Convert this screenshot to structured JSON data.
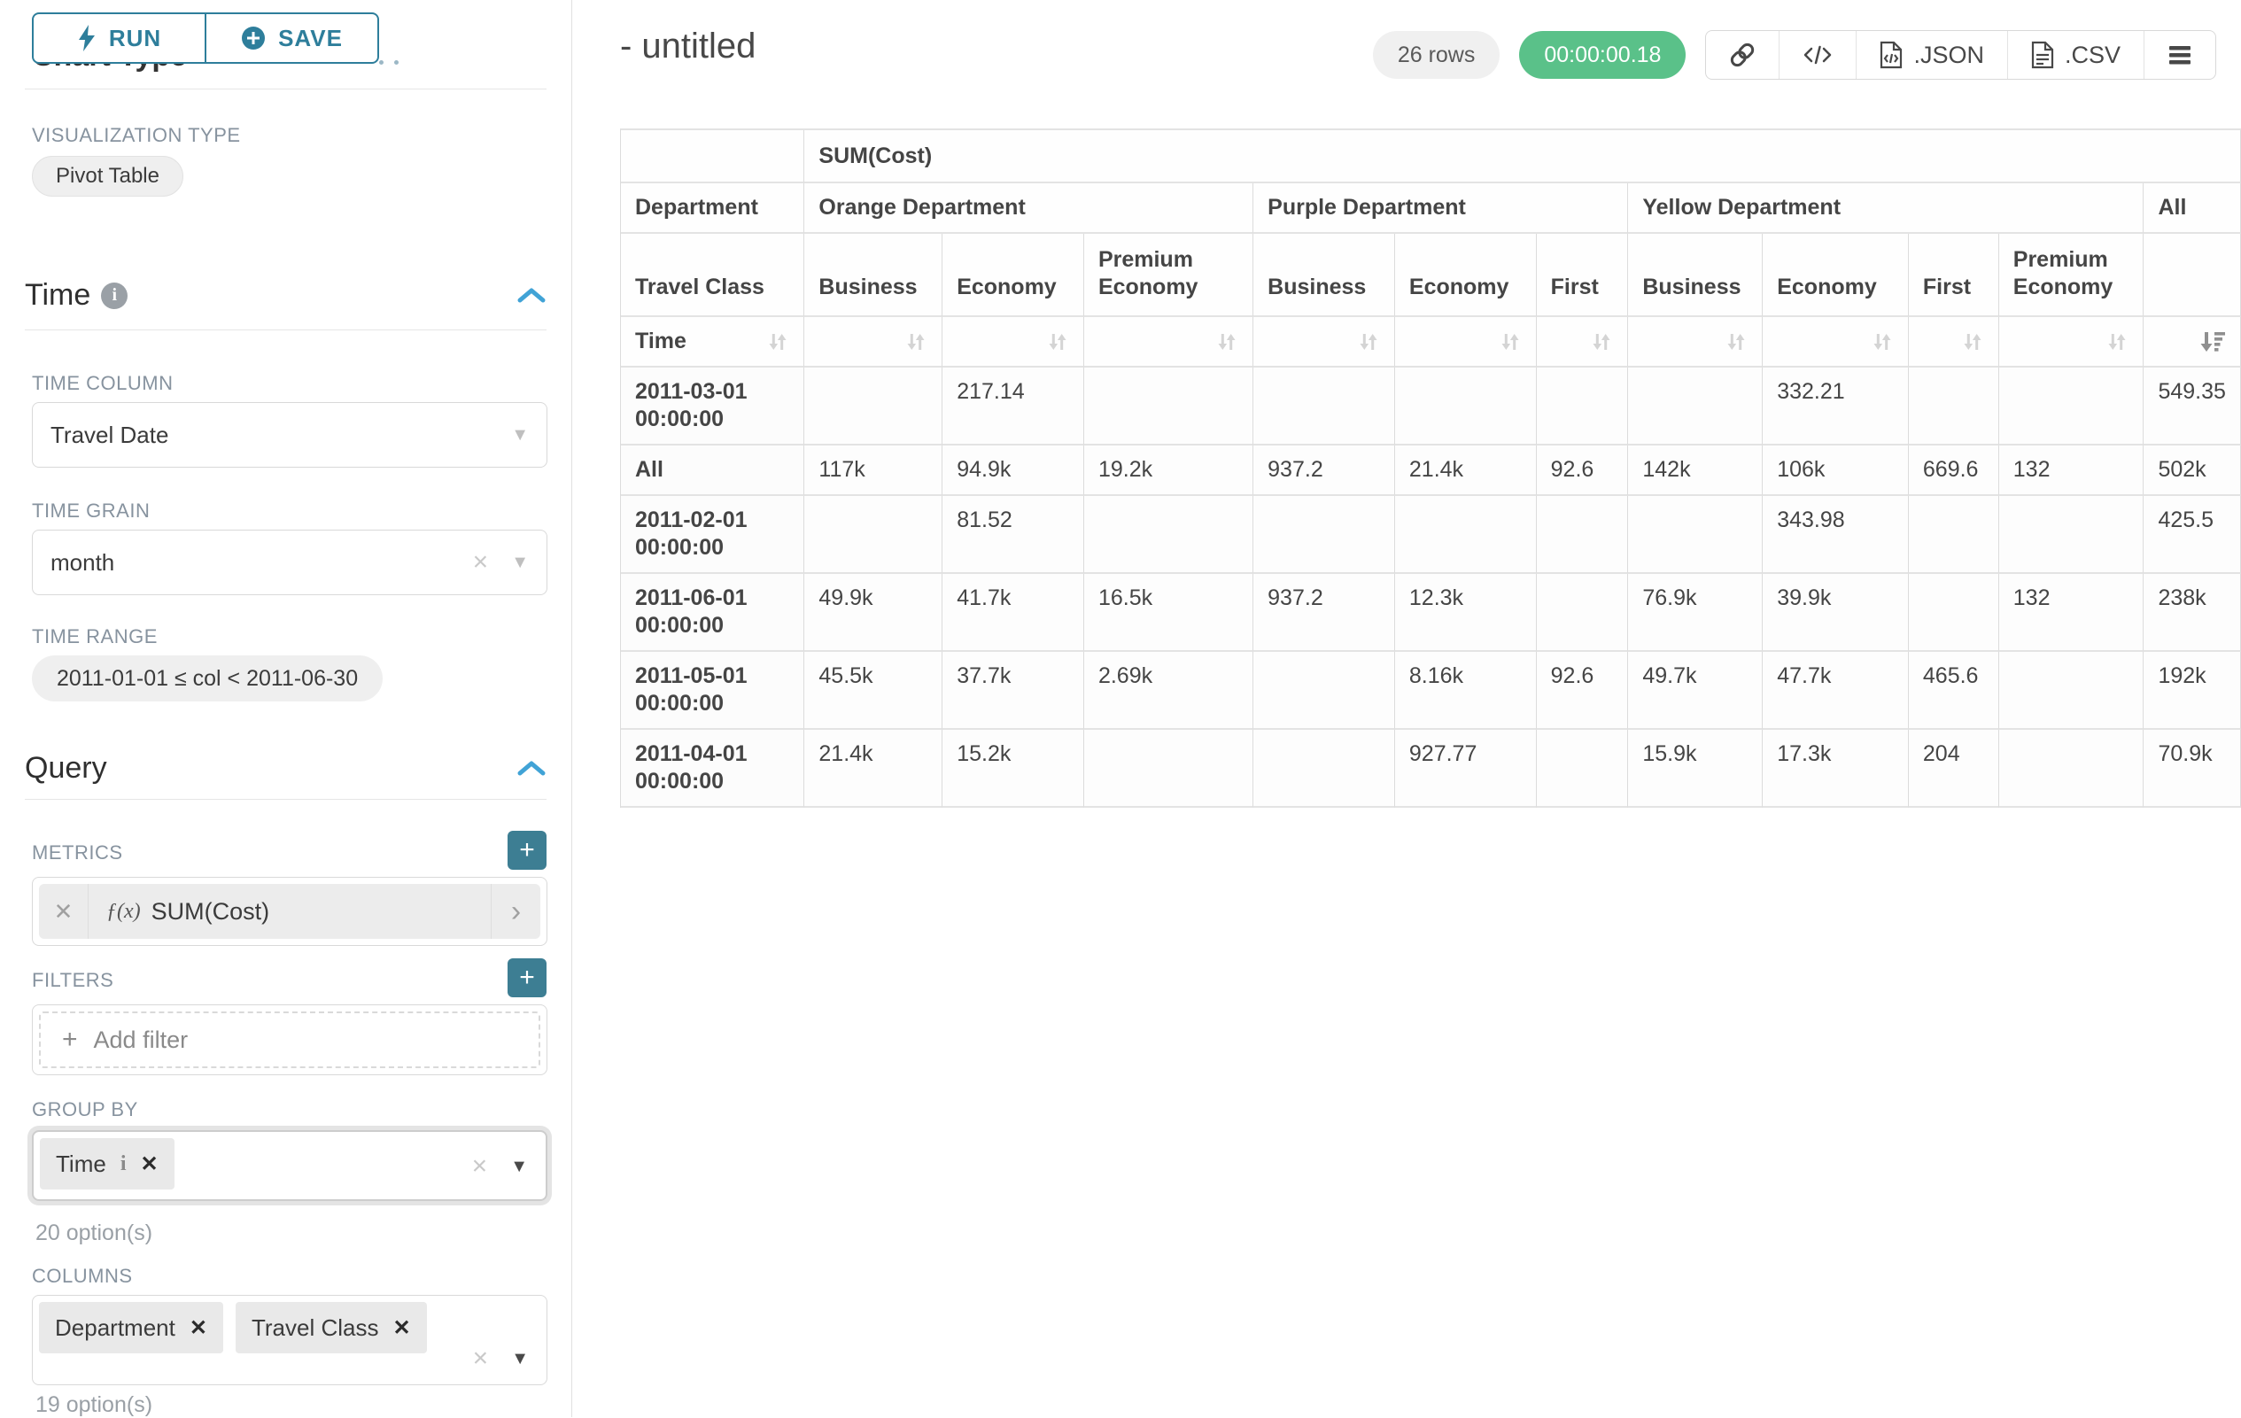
{
  "colors": {
    "accent": "#2e7e9b",
    "accent_fill": "#3d7e93",
    "success_green": "#5ac189",
    "chevron_blue": "#41a3d6"
  },
  "glyphs": {
    "close": "✕",
    "clear": "×",
    "caret_down": "▼",
    "chevron_right": "›",
    "plus": "+",
    "info": "i",
    "fx": "ƒ(x)"
  },
  "sidebar": {
    "run_button": "RUN",
    "save_button": "SAVE",
    "chart_type_title": "Chart Type",
    "visualization_type_label": "VISUALIZATION TYPE",
    "visualization_type": "Pivot Table",
    "time_section_title": "Time",
    "time_column_label": "TIME COLUMN",
    "time_column_value": "Travel Date",
    "time_grain_label": "TIME GRAIN",
    "time_grain_value": "month",
    "time_range_label": "TIME RANGE",
    "time_range_value": "2011-01-01 ≤ col < 2011-06-30",
    "query_section_title": "Query",
    "metrics_label": "METRICS",
    "metric_value": "SUM(Cost)",
    "filters_label": "FILTERS",
    "add_filter_label": "Add filter",
    "group_by_label": "GROUP BY",
    "group_by_chip": "Time",
    "group_by_hint": "20 option(s)",
    "columns_label": "COLUMNS",
    "columns_chips": [
      "Department",
      "Travel Class"
    ],
    "columns_hint": "19 option(s)"
  },
  "header": {
    "title": "- untitled",
    "row_count_badge": "26 rows",
    "query_timer": "00:00:00.18",
    "export_json_label": ".JSON",
    "export_csv_label": ".CSV"
  },
  "table": {
    "metric_header": "SUM(Cost)",
    "row_dimension_label": "Department",
    "column_dimension_label": "Travel Class",
    "time_axis_label": "Time",
    "groups": [
      {
        "label": "Orange Department",
        "columns": [
          "Business",
          "Economy",
          "Premium Economy"
        ]
      },
      {
        "label": "Purple Department",
        "columns": [
          "Business",
          "Economy",
          "First"
        ]
      },
      {
        "label": "Yellow Department",
        "columns": [
          "Business",
          "Economy",
          "First",
          "Premium Economy"
        ]
      },
      {
        "label": "All",
        "columns": [
          ""
        ]
      }
    ],
    "rows": [
      {
        "label": "2011-03-01 00:00:00",
        "values": [
          "",
          "217.14",
          "",
          "",
          "",
          "",
          "",
          "332.21",
          "",
          "",
          "549.35"
        ]
      },
      {
        "label": "All",
        "values": [
          "117k",
          "94.9k",
          "19.2k",
          "937.2",
          "21.4k",
          "92.6",
          "142k",
          "106k",
          "669.6",
          "132",
          "502k"
        ]
      },
      {
        "label": "2011-02-01 00:00:00",
        "values": [
          "",
          "81.52",
          "",
          "",
          "",
          "",
          "",
          "343.98",
          "",
          "",
          "425.5"
        ]
      },
      {
        "label": "2011-06-01 00:00:00",
        "values": [
          "49.9k",
          "41.7k",
          "16.5k",
          "937.2",
          "12.3k",
          "",
          "76.9k",
          "39.9k",
          "",
          "132",
          "238k"
        ]
      },
      {
        "label": "2011-05-01 00:00:00",
        "values": [
          "45.5k",
          "37.7k",
          "2.69k",
          "",
          "8.16k",
          "92.6",
          "49.7k",
          "47.7k",
          "465.6",
          "",
          "192k"
        ]
      },
      {
        "label": "2011-04-01 00:00:00",
        "values": [
          "21.4k",
          "15.2k",
          "",
          "",
          "927.77",
          "",
          "15.9k",
          "17.3k",
          "204",
          "",
          "70.9k"
        ]
      }
    ],
    "sorted_column": "All",
    "sort_direction": "descending"
  }
}
